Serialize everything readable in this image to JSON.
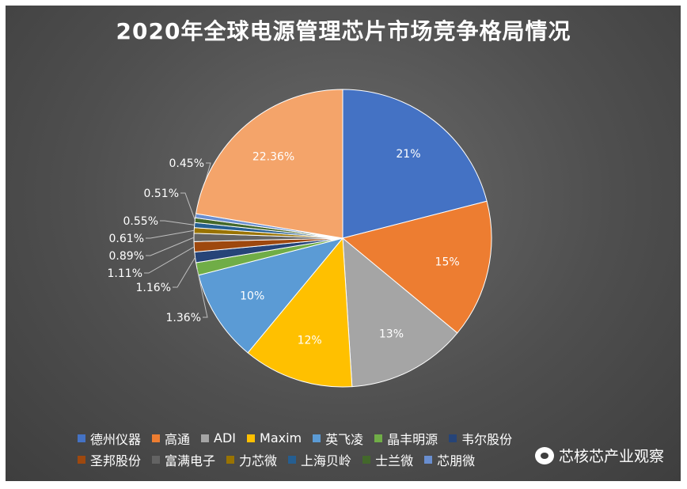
{
  "chart_data": {
    "type": "pie",
    "title": "2020年全球电源管理芯片市场竞争格局情况",
    "slices": [
      {
        "name": "德州仪器",
        "value": 21,
        "label": "21%",
        "color": "#4472C4"
      },
      {
        "name": "高通",
        "value": 15,
        "label": "15%",
        "color": "#ED7D31"
      },
      {
        "name": "ADI",
        "value": 13,
        "label": "13%",
        "color": "#A5A5A5"
      },
      {
        "name": "Maxim",
        "value": 12,
        "label": "12%",
        "color": "#FFC000"
      },
      {
        "name": "英飞凌",
        "value": 10,
        "label": "10%",
        "color": "#5B9BD5"
      },
      {
        "name": "晶丰明源",
        "value": 1.36,
        "label": "1.36%",
        "color": "#70AD47"
      },
      {
        "name": "韦尔股份",
        "value": 1.16,
        "label": "1.16%",
        "color": "#264478"
      },
      {
        "name": "圣邦股份",
        "value": 1.11,
        "label": "1.11%",
        "color": "#9E480E"
      },
      {
        "name": "富满电子",
        "value": 0.89,
        "label": "0.89%",
        "color": "#636363"
      },
      {
        "name": "力芯微",
        "value": 0.61,
        "label": "0.61%",
        "color": "#997300"
      },
      {
        "name": "上海贝岭",
        "value": 0.55,
        "label": "0.55%",
        "color": "#255E91"
      },
      {
        "name": "士兰微",
        "value": 0.51,
        "label": "0.51%",
        "color": "#43682B"
      },
      {
        "name": "芯朋微",
        "value": 0.45,
        "label": "0.45%",
        "color": "#698ED0"
      },
      {
        "name": "",
        "value": 22.36,
        "label": "22.36%",
        "color": "#F4A46A"
      }
    ],
    "legend_position": "bottom"
  },
  "watermark": "芯核芯产业观察"
}
